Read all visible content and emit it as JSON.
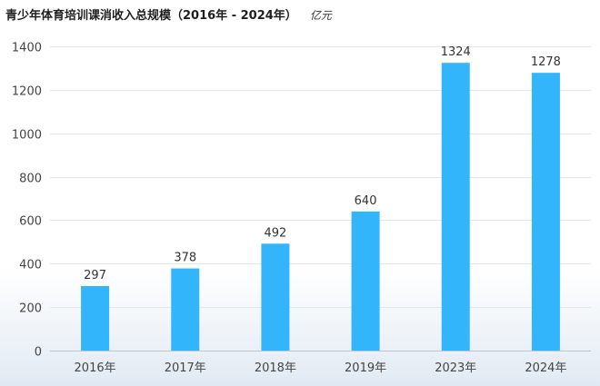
{
  "header": {
    "title": "青少年体育培训课消收入总规模（2016年 - 2024年）",
    "unit": "亿元"
  },
  "chart_data": {
    "type": "bar",
    "title": "青少年体育培训课消收入总规模（2016年 - 2024年）",
    "unit": "亿元",
    "categories": [
      "2016年",
      "2017年",
      "2018年",
      "2019年",
      "2023年",
      "2024年"
    ],
    "values": [
      297,
      378,
      492,
      640,
      1324,
      1278
    ],
    "ylim": [
      0,
      1400
    ],
    "yticks": [
      0,
      200,
      400,
      600,
      800,
      1000,
      1200,
      1400
    ],
    "grid": true,
    "legend": "none",
    "bar_color": "#33b5fc"
  }
}
